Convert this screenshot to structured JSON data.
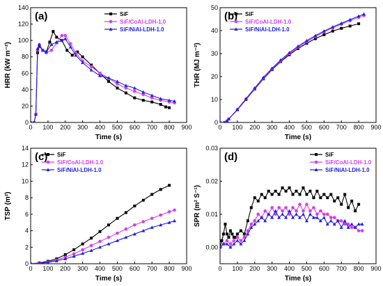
{
  "colors": {
    "SiF": "#000000",
    "CoAl": "#d63ee6",
    "NiAl": "#2222dd"
  },
  "legend_names": [
    "SiF",
    "SiF/CoAl-LDH-1.0",
    "SiF/NiAl-LDH-1.0"
  ],
  "chart_data": [
    {
      "type": "line",
      "panel_label": "(a)",
      "xlabel": "Time (s)",
      "ylabel": "HRR (kW m⁻²)",
      "xlim": [
        0,
        900
      ],
      "ylim": [
        0,
        140
      ],
      "xticks": [
        0,
        100,
        200,
        300,
        400,
        500,
        600,
        700,
        800,
        900
      ],
      "yticks": [
        0,
        20,
        40,
        60,
        80,
        100,
        120,
        140
      ],
      "ytick_labels": [
        "0",
        "20",
        "40",
        "60",
        "80",
        "100",
        "120",
        "140"
      ],
      "legend": "top-right",
      "series": [
        {
          "name": "SiF",
          "key": "SiF",
          "x": [
            0,
            20,
            30,
            40,
            50,
            70,
            90,
            110,
            130,
            150,
            180,
            210,
            240,
            270,
            300,
            350,
            400,
            450,
            500,
            550,
            600,
            650,
            700,
            750,
            780,
            800
          ],
          "y": [
            0,
            0,
            10,
            85,
            93,
            88,
            86,
            98,
            111,
            104,
            100,
            88,
            82,
            86,
            80,
            70,
            60,
            50,
            42,
            36,
            30,
            27,
            25,
            22,
            19,
            18
          ]
        },
        {
          "name": "SiF/CoAl-LDH-1.0",
          "key": "CoAl",
          "x": [
            0,
            20,
            30,
            40,
            50,
            70,
            90,
            120,
            150,
            180,
            200,
            230,
            260,
            300,
            350,
            400,
            450,
            500,
            550,
            600,
            650,
            700,
            750,
            800,
            830
          ],
          "y": [
            0,
            0,
            10,
            88,
            95,
            88,
            85,
            88,
            97,
            106,
            106,
            96,
            85,
            75,
            68,
            60,
            54,
            47,
            42,
            38,
            34,
            30,
            27,
            25,
            24
          ]
        },
        {
          "name": "SiF/NiAl-LDH-1.0",
          "key": "NiAl",
          "x": [
            0,
            20,
            30,
            40,
            50,
            70,
            90,
            120,
            150,
            180,
            200,
            230,
            260,
            300,
            350,
            400,
            450,
            500,
            550,
            600,
            650,
            700,
            750,
            800,
            830
          ],
          "y": [
            0,
            0,
            10,
            90,
            95,
            88,
            86,
            95,
            98,
            100,
            102,
            92,
            82,
            73,
            64,
            57,
            54,
            50,
            45,
            42,
            37,
            33,
            29,
            27,
            26
          ]
        }
      ]
    },
    {
      "type": "line",
      "panel_label": "(b)",
      "xlabel": "Time (s)",
      "ylabel": "THR (MJ m⁻²)",
      "xlim": [
        0,
        900
      ],
      "ylim": [
        0,
        50
      ],
      "xticks": [
        0,
        100,
        200,
        300,
        400,
        500,
        600,
        700,
        800,
        900
      ],
      "yticks": [
        0,
        10,
        20,
        30,
        40,
        50
      ],
      "ytick_labels": [
        "0",
        "10",
        "20",
        "30",
        "40",
        "50"
      ],
      "legend": "top-left",
      "series": [
        {
          "name": "SiF",
          "key": "SiF",
          "x": [
            0,
            25,
            40,
            50,
            100,
            150,
            200,
            250,
            300,
            350,
            400,
            450,
            500,
            550,
            600,
            650,
            700,
            750,
            800
          ],
          "y": [
            0,
            0,
            0.6,
            1.5,
            5.5,
            10,
            14.5,
            19,
            23,
            26.5,
            29.5,
            32.2,
            34.5,
            36.5,
            38.2,
            39.8,
            41,
            42,
            43
          ]
        },
        {
          "name": "SiF/CoAl-LDH-1.0",
          "key": "CoAl",
          "x": [
            0,
            25,
            40,
            50,
            100,
            150,
            200,
            250,
            300,
            350,
            400,
            450,
            500,
            550,
            600,
            650,
            700,
            750,
            800,
            830
          ],
          "y": [
            0,
            0,
            0.6,
            1.5,
            5.6,
            10.2,
            14.7,
            19.3,
            23.3,
            26.8,
            30,
            32.8,
            35.2,
            37.4,
            39.4,
            41.2,
            42.8,
            44.3,
            45.8,
            46.6
          ]
        },
        {
          "name": "SiF/NiAl-LDH-1.0",
          "key": "NiAl",
          "x": [
            0,
            25,
            40,
            50,
            100,
            150,
            200,
            250,
            300,
            350,
            400,
            450,
            500,
            550,
            600,
            650,
            700,
            750,
            800,
            830
          ],
          "y": [
            0,
            0,
            0.6,
            1.5,
            5.7,
            10.4,
            15,
            19.6,
            23.6,
            27.2,
            30.4,
            33.2,
            35.6,
            37.8,
            39.8,
            41.6,
            43.2,
            44.8,
            46.3,
            47.2
          ]
        }
      ]
    },
    {
      "type": "line",
      "panel_label": "(c)",
      "xlabel": "Time (s)",
      "ylabel": "TSP (m²)",
      "xlim": [
        0,
        900
      ],
      "ylim": [
        0,
        14
      ],
      "xticks": [
        0,
        100,
        200,
        300,
        400,
        500,
        600,
        700,
        800,
        900
      ],
      "yticks": [
        0,
        2,
        4,
        6,
        8,
        10,
        12,
        14
      ],
      "ytick_labels": [
        "0",
        "2",
        "4",
        "6",
        "8",
        "10",
        "12",
        "14"
      ],
      "legend": "top-left",
      "series": [
        {
          "name": "SiF",
          "key": "SiF",
          "x": [
            0,
            50,
            100,
            150,
            200,
            250,
            300,
            350,
            400,
            450,
            500,
            550,
            600,
            650,
            700,
            750,
            800
          ],
          "y": [
            0,
            0.1,
            0.3,
            0.6,
            1.1,
            1.7,
            2.4,
            3.1,
            3.9,
            4.7,
            5.5,
            6.2,
            7,
            7.7,
            8.4,
            9,
            9.5
          ]
        },
        {
          "name": "SiF/CoAl-LDH-1.0",
          "key": "CoAl",
          "x": [
            0,
            50,
            100,
            150,
            200,
            250,
            300,
            350,
            400,
            450,
            500,
            550,
            600,
            650,
            700,
            750,
            800,
            830
          ],
          "y": [
            0,
            0.05,
            0.2,
            0.45,
            0.8,
            1.2,
            1.7,
            2.2,
            2.7,
            3.2,
            3.7,
            4.2,
            4.7,
            5.1,
            5.5,
            5.9,
            6.3,
            6.5
          ]
        },
        {
          "name": "SiF/NiAl-LDH-1.0",
          "key": "NiAl",
          "x": [
            0,
            50,
            100,
            150,
            200,
            250,
            300,
            350,
            400,
            450,
            500,
            550,
            600,
            650,
            700,
            750,
            800,
            830
          ],
          "y": [
            0,
            0.05,
            0.15,
            0.35,
            0.6,
            0.9,
            1.25,
            1.6,
            2,
            2.4,
            2.8,
            3.2,
            3.6,
            4,
            4.4,
            4.7,
            5,
            5.2
          ]
        }
      ]
    },
    {
      "type": "line",
      "panel_label": "(d)",
      "xlabel": "Time (s)",
      "ylabel": "SPR (m² S⁻¹)",
      "xlim": [
        0,
        900
      ],
      "ylim": [
        -0.005,
        0.03
      ],
      "xticks": [
        0,
        100,
        200,
        300,
        400,
        500,
        600,
        700,
        800,
        900
      ],
      "yticks": [
        0,
        0.01,
        0.02,
        0.03
      ],
      "ytick_labels": [
        "0.00",
        "0.01",
        "0.02",
        "0.03"
      ],
      "legend": "top-right",
      "series": [
        {
          "name": "SiF",
          "key": "SiF",
          "x": [
            0,
            10,
            20,
            30,
            40,
            50,
            60,
            70,
            80,
            90,
            100,
            120,
            140,
            160,
            180,
            200,
            220,
            240,
            260,
            280,
            300,
            320,
            340,
            360,
            380,
            400,
            420,
            440,
            460,
            480,
            500,
            520,
            540,
            560,
            580,
            600,
            620,
            640,
            660,
            680,
            700,
            720,
            740,
            760,
            780,
            800
          ],
          "y": [
            0,
            0.002,
            0.004,
            0.007,
            0.004,
            0.003,
            0.005,
            0.004,
            0.003,
            0.003,
            0.004,
            0.005,
            0.004,
            0.008,
            0.012,
            0.015,
            0.014,
            0.016,
            0.015,
            0.017,
            0.016,
            0.017,
            0.016,
            0.018,
            0.017,
            0.018,
            0.016,
            0.017,
            0.016,
            0.018,
            0.016,
            0.017,
            0.015,
            0.017,
            0.015,
            0.016,
            0.015,
            0.016,
            0.014,
            0.015,
            0.013,
            0.016,
            0.012,
            0.014,
            0.011,
            0.013
          ]
        },
        {
          "name": "SiF/CoAl-LDH-1.0",
          "key": "CoAl",
          "x": [
            0,
            20,
            40,
            60,
            80,
            100,
            120,
            140,
            160,
            180,
            200,
            220,
            240,
            260,
            280,
            300,
            320,
            340,
            360,
            380,
            400,
            420,
            440,
            460,
            480,
            500,
            520,
            540,
            560,
            580,
            600,
            620,
            640,
            660,
            680,
            700,
            720,
            740,
            760,
            780,
            800,
            820
          ],
          "y": [
            0,
            0.001,
            0.002,
            0.001,
            0.002,
            0.003,
            0.002,
            0.003,
            0.005,
            0.007,
            0.008,
            0.01,
            0.009,
            0.011,
            0.01,
            0.012,
            0.01,
            0.012,
            0.011,
            0.012,
            0.01,
            0.012,
            0.011,
            0.013,
            0.011,
            0.013,
            0.011,
            0.012,
            0.01,
            0.011,
            0.01,
            0.01,
            0.009,
            0.009,
            0.008,
            0.008,
            0.007,
            0.007,
            0.006,
            0.006,
            0.005,
            0.005
          ]
        },
        {
          "name": "SiF/NiAl-LDH-1.0",
          "key": "NiAl",
          "x": [
            0,
            20,
            40,
            60,
            80,
            100,
            120,
            140,
            160,
            180,
            200,
            220,
            240,
            260,
            280,
            300,
            320,
            340,
            360,
            380,
            400,
            420,
            440,
            460,
            480,
            500,
            520,
            540,
            560,
            580,
            600,
            620,
            640,
            660,
            680,
            700,
            720,
            740,
            760,
            780,
            800,
            820
          ],
          "y": [
            0,
            0.001,
            0.001,
            0.0,
            0.001,
            0.002,
            0.001,
            0.002,
            0.004,
            0.006,
            0.007,
            0.008,
            0.009,
            0.008,
            0.01,
            0.009,
            0.011,
            0.009,
            0.01,
            0.009,
            0.011,
            0.009,
            0.01,
            0.009,
            0.01,
            0.008,
            0.01,
            0.009,
            0.009,
            0.008,
            0.009,
            0.007,
            0.008,
            0.007,
            0.008,
            0.006,
            0.008,
            0.006,
            0.007,
            0.006,
            0.007,
            0.007
          ]
        }
      ]
    }
  ]
}
